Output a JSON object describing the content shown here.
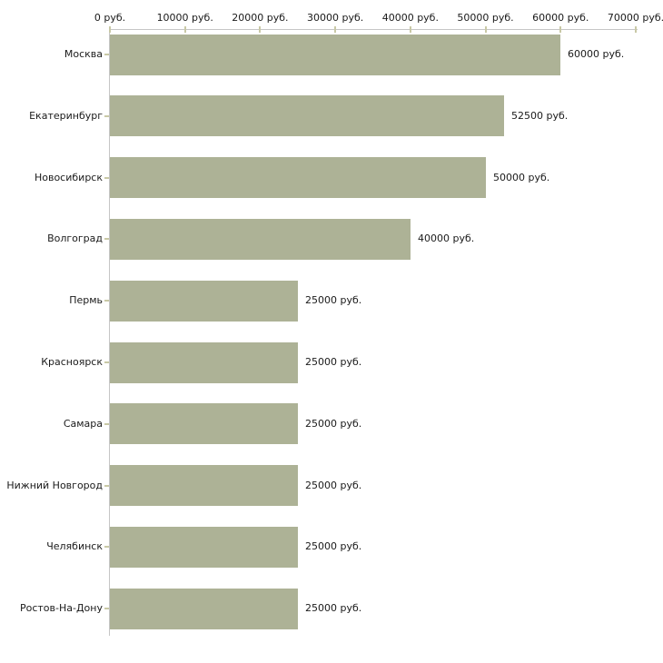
{
  "chart_data": {
    "type": "bar",
    "orientation": "horizontal",
    "title": "",
    "xlabel": "",
    "ylabel": "",
    "xlim": [
      0,
      70000
    ],
    "grid": false,
    "legend": false,
    "unit": "руб.",
    "categories": [
      "Москва",
      "Екатеринбург",
      "Новосибирск",
      "Волгоград",
      "Пермь",
      "Красноярск",
      "Самара",
      "Нижний Новгород",
      "Челябинск",
      "Ростов-На-Дону"
    ],
    "values": [
      60000,
      52500,
      50000,
      40000,
      25000,
      25000,
      25000,
      25000,
      25000,
      25000
    ],
    "value_labels": [
      "60000 руб.",
      "52500 руб.",
      "50000 руб.",
      "40000 руб.",
      "25000 руб.",
      "25000 руб.",
      "25000 руб.",
      "25000 руб.",
      "25000 руб.",
      "25000 руб."
    ],
    "x_tick_values": [
      0,
      10000,
      20000,
      30000,
      40000,
      50000,
      60000,
      70000
    ],
    "x_tick_labels": [
      "0 руб.",
      "10000 руб.",
      "20000 руб.",
      "30000 руб.",
      "40000 руб.",
      "50000 руб.",
      "60000 руб.",
      "70000 руб."
    ],
    "colors": {
      "bar": "#adb296",
      "tick": "#c9c9a6",
      "axis": "#c6c6c6",
      "text": "#1a1a1a",
      "background": "#ffffff"
    }
  }
}
